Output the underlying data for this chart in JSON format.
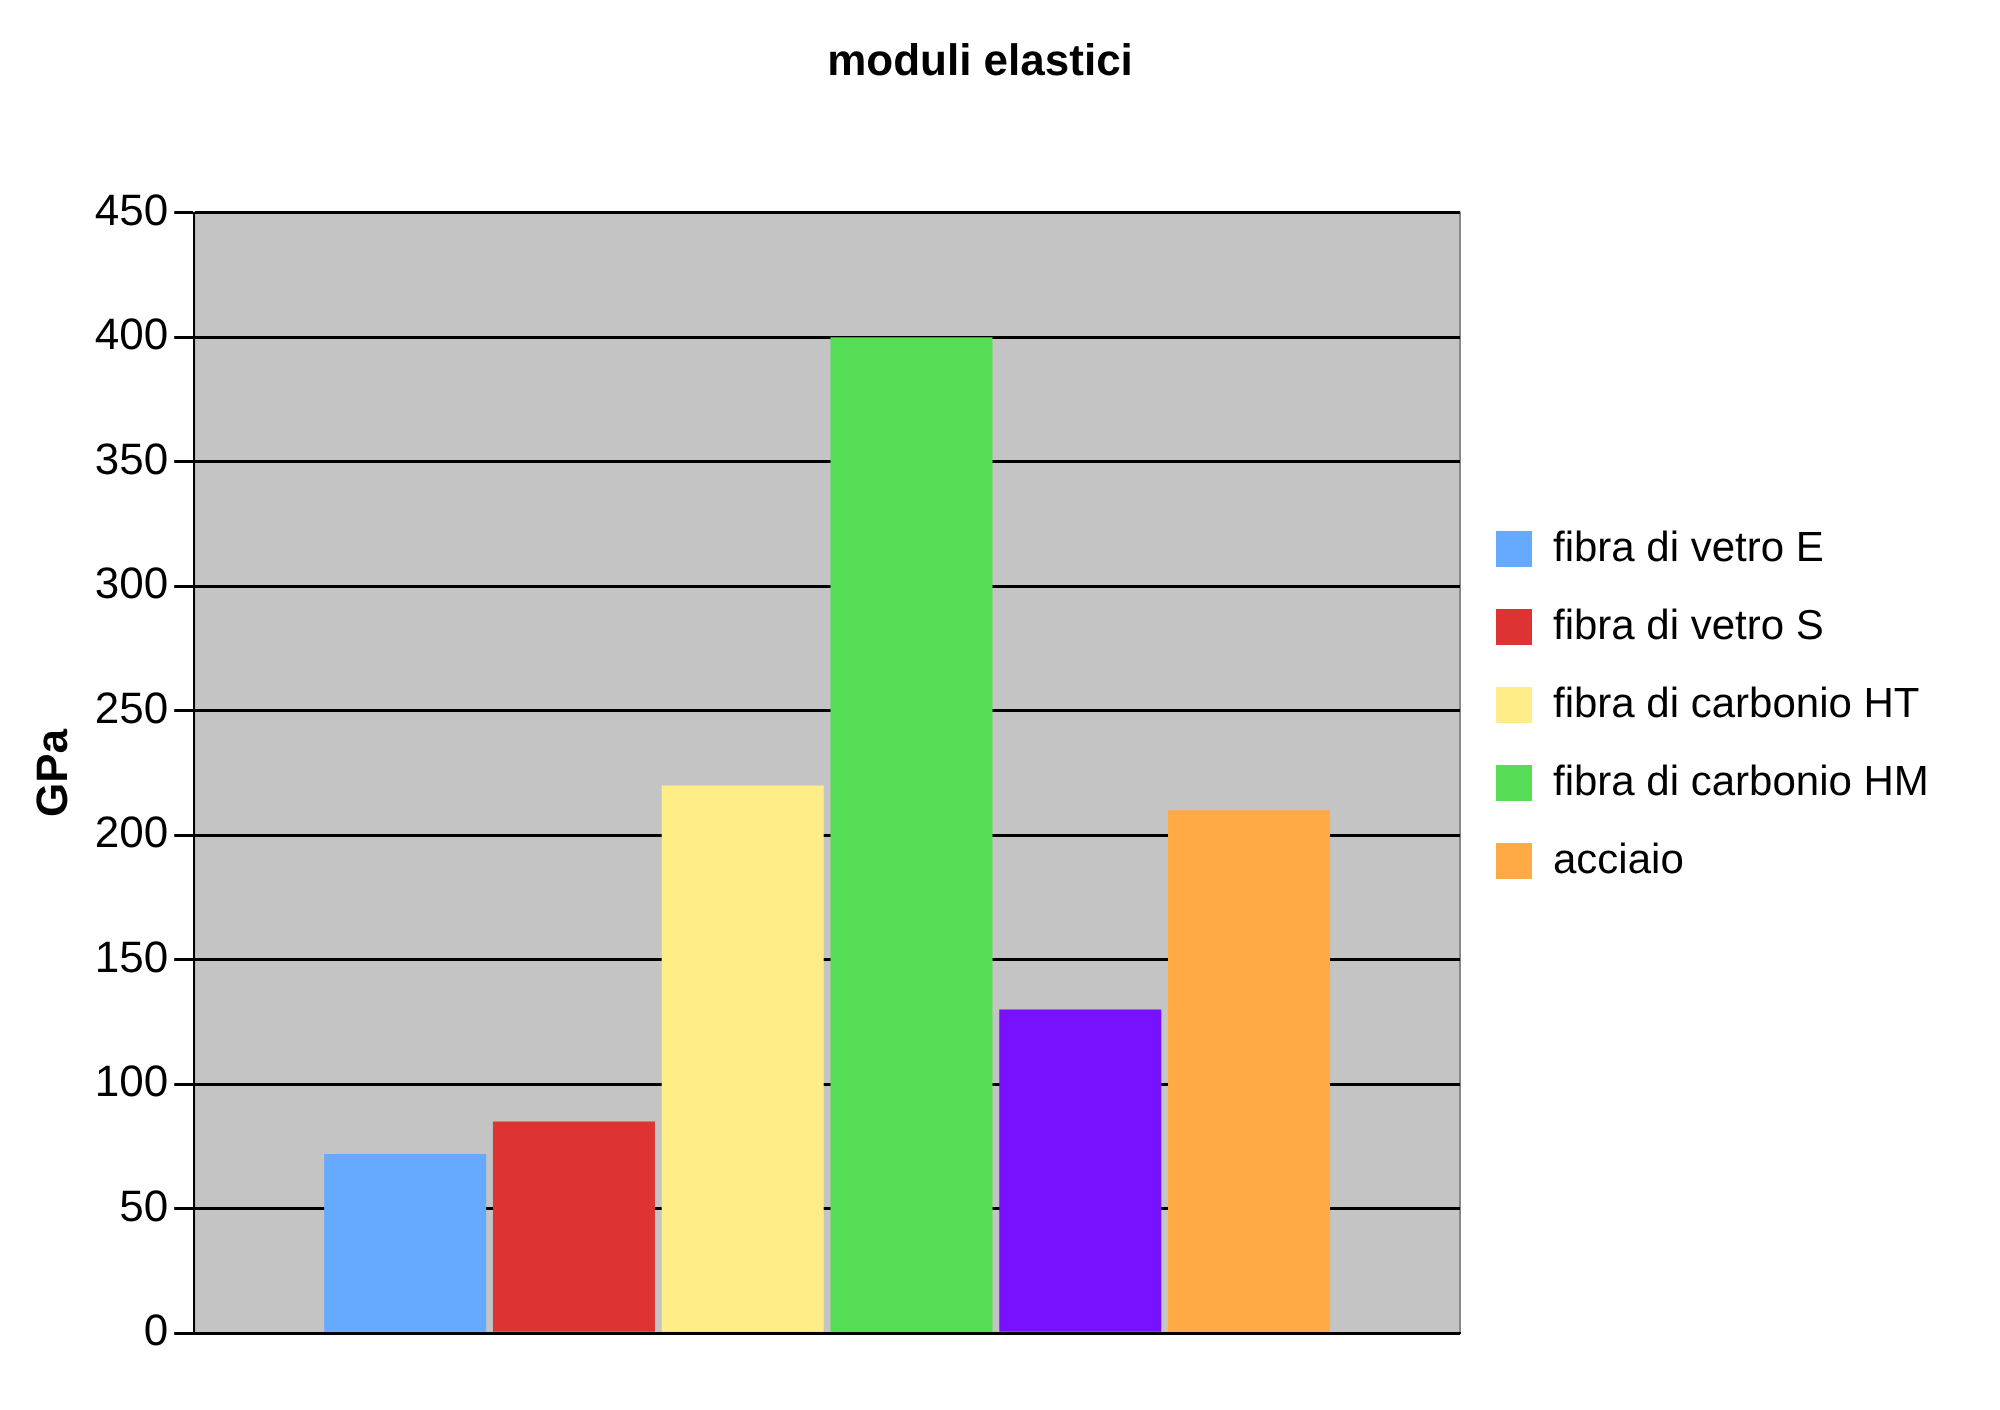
{
  "chart_data": {
    "type": "bar",
    "title": "moduli elastici",
    "ylabel": "GPa",
    "categories": [
      null
    ],
    "series": [
      {
        "name": "fibra di vetro E",
        "color": "#66aaff",
        "values": [
          72
        ]
      },
      {
        "name": "fibra di vetro S",
        "color": "#dd3333",
        "values": [
          85
        ]
      },
      {
        "name": "fibra di carbonio HT",
        "color": "#ffee88",
        "values": [
          220
        ]
      },
      {
        "name": "fibra di carbonio HM",
        "color": "#55dd55",
        "values": [
          400
        ]
      },
      {
        "color": "#7711ff",
        "values": [
          130
        ]
      },
      {
        "name": "acciaio",
        "color": "#ffaa44",
        "values": [
          210
        ]
      }
    ],
    "ylim": [
      0,
      450
    ],
    "yticks": [
      0,
      50,
      100,
      150,
      200,
      250,
      300,
      350,
      400,
      450
    ],
    "grid": "y",
    "legend": "right"
  }
}
